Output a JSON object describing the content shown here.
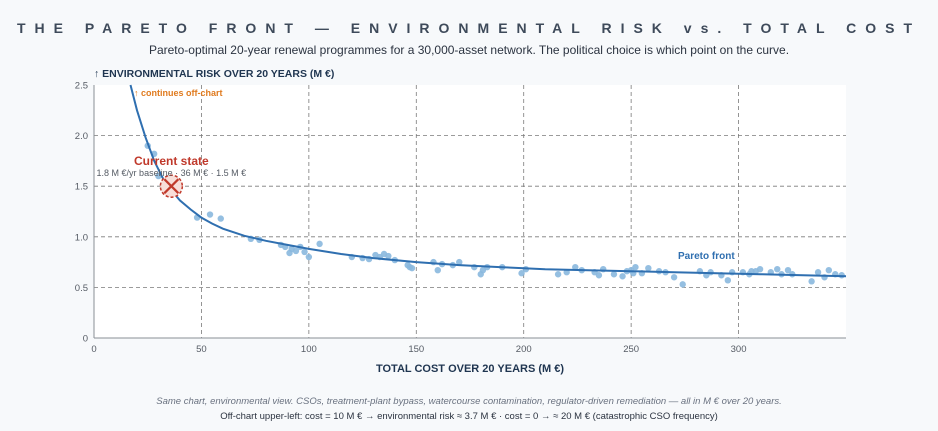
{
  "header": {
    "title": "THE PARETO FRONT — ENVIRONMENTAL RISK vs. TOTAL COST",
    "subtitle": "Pareto-optimal 20-year renewal programmes for a 30,000-asset network. The political choice is which point on the curve."
  },
  "footer": {
    "line1": "Same chart, environmental view. CSOs, treatment-plant bypass, watercourse contamination, regulator-driven remediation — all in M € over 20 years.",
    "line2": "Off-chart upper-left: cost = 10 M € → environmental risk ≈ 3.7 M €  ·  cost = 0 → ≈ 20 M €  (catastrophic CSO frequency)"
  },
  "colors": {
    "curve": "#2f6fb0",
    "points": "#8ab8de",
    "current_state": "#c0392b",
    "offchart_note": "#e07b1f",
    "grid": "#7a7a7a"
  },
  "chart_data": {
    "type": "scatter",
    "title": "THE PARETO FRONT — ENVIRONMENTAL RISK vs. TOTAL COST",
    "subtitle": "Pareto-optimal 20-year renewal programmes for a 30,000-asset network. The political choice is which point on the curve.",
    "xlabel": "TOTAL COST OVER 20 YEARS  (M €)",
    "ylabel": "↑  ENVIRONMENTAL RISK OVER 20 YEARS  (M €)",
    "xlim": [
      0,
      350
    ],
    "ylim": [
      0,
      2.5
    ],
    "xticks": [
      0,
      50,
      100,
      150,
      200,
      250,
      300
    ],
    "yticks": [
      0,
      0.5,
      1.0,
      1.5,
      2.0,
      2.5
    ],
    "ytick_labels": [
      "0",
      "0.5",
      "1.0",
      "1.5",
      "2.0",
      "2.5"
    ],
    "grid": true,
    "series": [
      {
        "name": "Pareto front",
        "kind": "line",
        "x": [
          17,
          20,
          24,
          28,
          32,
          36,
          40,
          45,
          50,
          55,
          60,
          70,
          80,
          90,
          100,
          115,
          130,
          150,
          170,
          190,
          210,
          230,
          250,
          270,
          290,
          310,
          330,
          350
        ],
        "y": [
          2.55,
          2.25,
          1.98,
          1.75,
          1.58,
          1.46,
          1.36,
          1.27,
          1.19,
          1.13,
          1.08,
          1.01,
          0.96,
          0.92,
          0.88,
          0.83,
          0.79,
          0.75,
          0.72,
          0.7,
          0.68,
          0.67,
          0.66,
          0.65,
          0.64,
          0.63,
          0.62,
          0.61
        ]
      },
      {
        "kind": "scatter",
        "x": [
          25,
          28,
          30,
          48,
          54,
          59,
          73,
          77,
          87,
          89,
          91,
          92,
          94,
          96,
          98,
          100,
          105,
          120,
          125,
          128,
          131,
          133,
          135,
          137,
          140,
          146,
          147,
          148,
          158,
          160,
          162,
          167,
          170,
          177,
          180,
          181,
          183,
          190,
          199,
          201,
          216,
          220,
          224,
          227,
          233,
          235,
          237,
          242,
          246,
          248,
          250,
          251,
          252,
          255,
          258,
          263,
          266,
          270,
          274,
          282,
          285,
          287,
          292,
          295,
          297,
          302,
          305,
          306,
          308,
          310,
          315,
          318,
          320,
          323,
          325,
          334,
          337,
          340,
          342,
          345,
          348
        ],
        "y": [
          1.9,
          1.82,
          1.6,
          1.19,
          1.22,
          1.18,
          0.98,
          0.97,
          0.92,
          0.9,
          0.84,
          0.88,
          0.86,
          0.9,
          0.85,
          0.8,
          0.93,
          0.8,
          0.79,
          0.78,
          0.82,
          0.8,
          0.83,
          0.81,
          0.77,
          0.72,
          0.7,
          0.69,
          0.75,
          0.67,
          0.73,
          0.72,
          0.75,
          0.7,
          0.63,
          0.67,
          0.7,
          0.7,
          0.64,
          0.68,
          0.63,
          0.65,
          0.7,
          0.67,
          0.65,
          0.62,
          0.68,
          0.63,
          0.61,
          0.66,
          0.67,
          0.64,
          0.7,
          0.64,
          0.69,
          0.66,
          0.65,
          0.6,
          0.53,
          0.66,
          0.62,
          0.65,
          0.62,
          0.57,
          0.65,
          0.65,
          0.63,
          0.66,
          0.66,
          0.68,
          0.65,
          0.68,
          0.63,
          0.67,
          0.63,
          0.56,
          0.65,
          0.6,
          0.67,
          0.63,
          0.62
        ]
      }
    ],
    "annotations": {
      "offchart": "↑  continues off-chart",
      "current_state_label": "Current state",
      "current_state_note": "1.8 M €/yr baseline · 36 M € · 1.5 M €",
      "current_state_x": 36,
      "current_state_y": 1.5,
      "curve_label": "Pareto front",
      "curve_label_x": 285,
      "curve_label_y": 0.78
    }
  }
}
